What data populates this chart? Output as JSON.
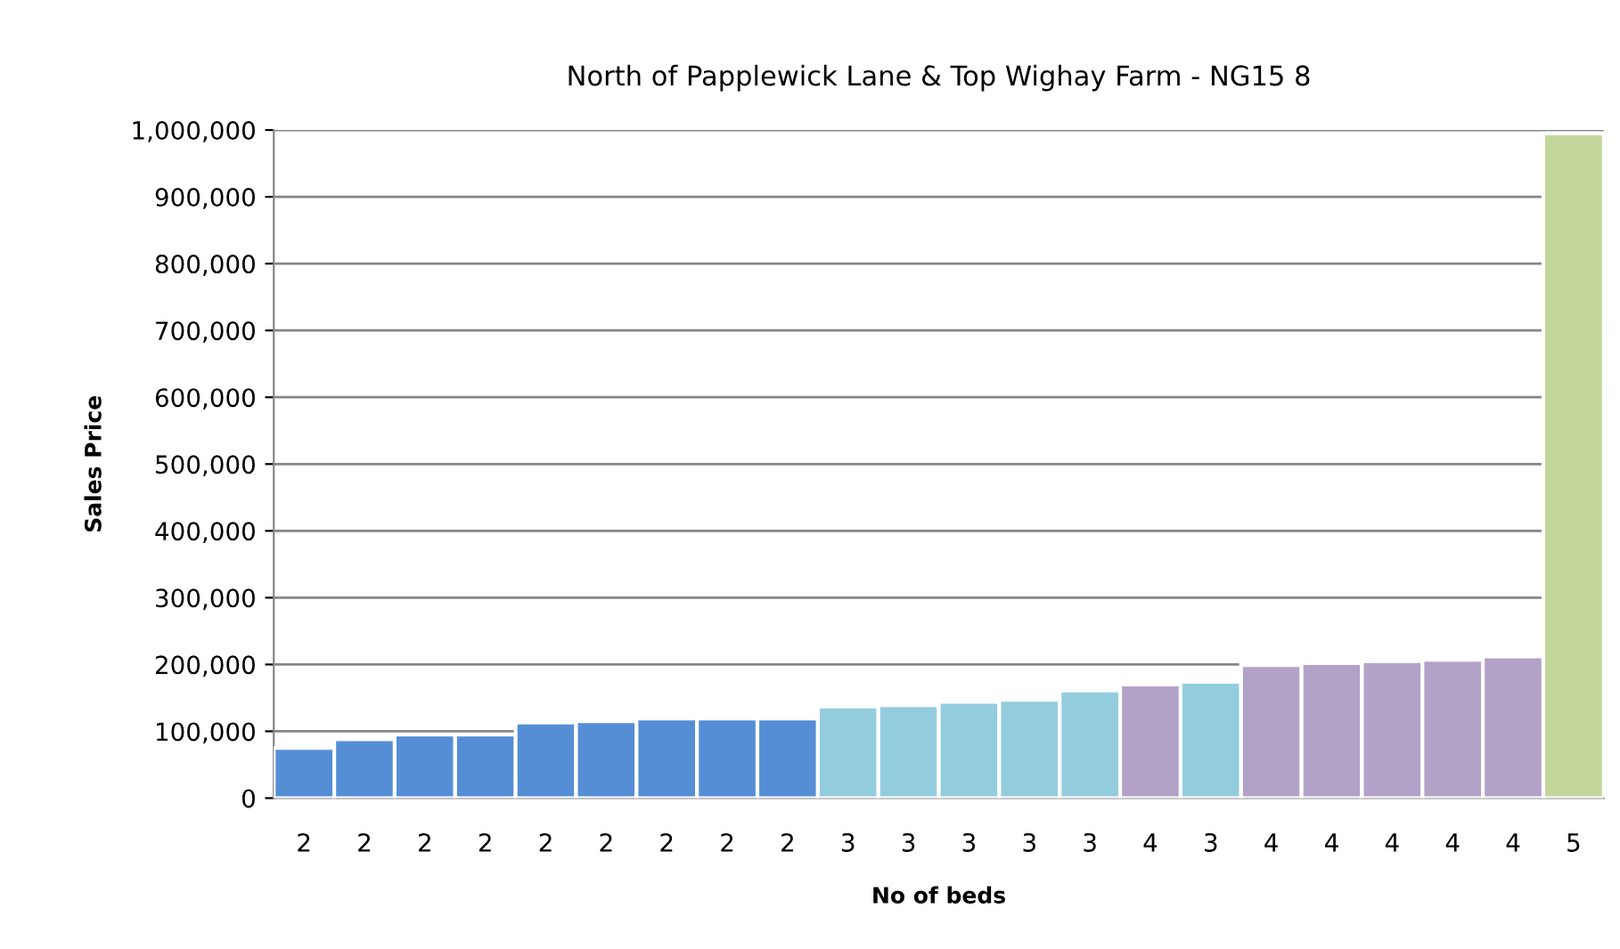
{
  "chart_data": {
    "type": "bar",
    "title": "North of Papplewick Lane & Top Wighay Farm - NG15 8",
    "xlabel": "No of beds",
    "ylabel": "Sales Price",
    "categories": [
      "2",
      "2",
      "2",
      "2",
      "2",
      "2",
      "2",
      "2",
      "2",
      "3",
      "3",
      "3",
      "3",
      "3",
      "4",
      "3",
      "4",
      "4",
      "4",
      "4",
      "4",
      "5"
    ],
    "values": [
      75000,
      88000,
      95000,
      95000,
      113000,
      115000,
      119000,
      119000,
      119000,
      137000,
      139000,
      144000,
      147000,
      161000,
      170000,
      174000,
      199000,
      202000,
      205000,
      207000,
      212000,
      995000
    ],
    "colors": [
      "#558ed5",
      "#558ed5",
      "#558ed5",
      "#558ed5",
      "#558ed5",
      "#558ed5",
      "#558ed5",
      "#558ed5",
      "#558ed5",
      "#93cddd",
      "#93cddd",
      "#93cddd",
      "#93cddd",
      "#93cddd",
      "#b3a2c7",
      "#93cddd",
      "#b3a2c7",
      "#b3a2c7",
      "#b3a2c7",
      "#b3a2c7",
      "#b3a2c7",
      "#c3d69b"
    ],
    "ylim": [
      0,
      1000000
    ],
    "yticks": [
      {
        "value": 0,
        "label": "0"
      },
      {
        "value": 100000,
        "label": "100,000"
      },
      {
        "value": 200000,
        "label": "200,000"
      },
      {
        "value": 300000,
        "label": "300,000"
      },
      {
        "value": 400000,
        "label": "400,000"
      },
      {
        "value": 500000,
        "label": "500,000"
      },
      {
        "value": 600000,
        "label": "600,000"
      },
      {
        "value": 700000,
        "label": "700,000"
      },
      {
        "value": 800000,
        "label": "800,000"
      },
      {
        "value": 900000,
        "label": "900,000"
      },
      {
        "value": 1000000,
        "label": "1,000,000"
      }
    ],
    "grid": "y",
    "legend": false
  }
}
